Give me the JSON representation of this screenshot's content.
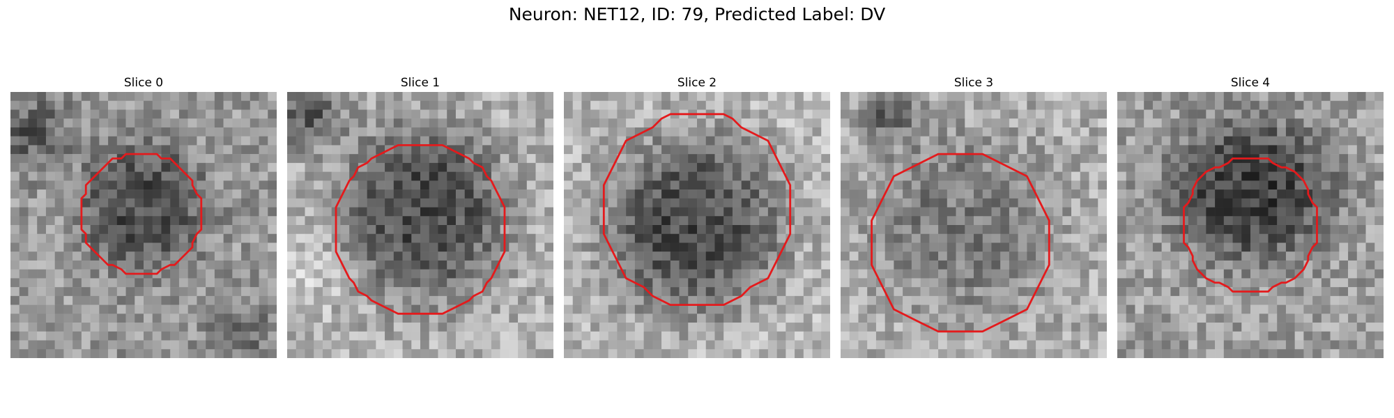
{
  "figure": {
    "title": "Neuron: NET12, ID: 79, Predicted Label: DV"
  },
  "colors": {
    "contour": "#e41a1c",
    "background": "#ffffff"
  },
  "panels": [
    {
      "title": "Slice 0"
    },
    {
      "title": "Slice 1"
    },
    {
      "title": "Slice 2"
    },
    {
      "title": "Slice 3"
    },
    {
      "title": "Slice 4"
    }
  ]
}
